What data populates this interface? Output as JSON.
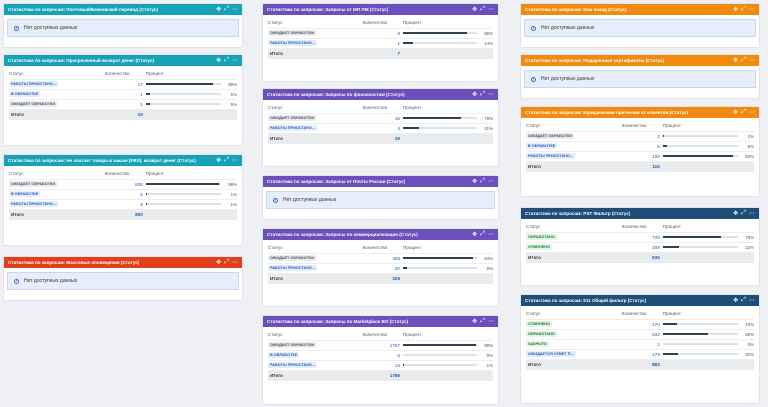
{
  "labels": {
    "status": "Статус",
    "count": "Количество",
    "percent": "Процент",
    "total": "Итого",
    "no_data": "Нет доступных данных",
    "info_icon": "i"
  },
  "icons": {
    "move": "move-icon",
    "expand": "expand-icon",
    "more": "more-icon"
  },
  "colors": {
    "teal": "#17a2b8",
    "purple": "#6b4fbb",
    "orange": "#f28a10",
    "red": "#e2401c",
    "navy": "#1f4e79",
    "bar": "#2f4050"
  },
  "cards": {
    "c1": {
      "title": "Статистика по запросам: Почтовый/Банковский перевод (Статус)"
    },
    "c2": {
      "title": "Статистика по запросам: Просроченный возврат денег (Статус)",
      "rows": [
        {
          "status": "РАБОТЫ ПРИОСТАНО...",
          "count": "17",
          "pct": 89,
          "pct_label": "89%"
        },
        {
          "status": "В ОБРАБОТКЕ",
          "count": "1",
          "pct": 5,
          "pct_label": "5%"
        },
        {
          "status": "ОЖИДАЕТ ОБРАБОТКИ",
          "count": "1",
          "pct": 5,
          "pct_label": "5%"
        }
      ],
      "total": "19"
    },
    "c3": {
      "title": "Статистика по запросам: Не хватает товара в заказе (FBS), возврат денег (Статус)",
      "rows": [
        {
          "status": "ОЖИДАЕТ ОБРАБОТКИ",
          "count": "836",
          "pct": 98,
          "pct_label": "98%"
        },
        {
          "status": "В ОБРАБОТКЕ",
          "count": "5",
          "pct": 1,
          "pct_label": "1%"
        },
        {
          "status": "РАБОТЫ ПРИОСТАНО...",
          "count": "9",
          "pct": 1,
          "pct_label": "1%"
        }
      ],
      "total": "850"
    },
    "c4": {
      "title": "Статистика по запросам: Массовые оповещения (Статус)"
    },
    "c5": {
      "title": "Статистика по запросам: Запросы от МП ПМ (Статус)",
      "rows": [
        {
          "status": "ОЖИДАЕТ ОБРАБОТКИ",
          "count": "6",
          "pct": 86,
          "pct_label": "86%"
        },
        {
          "status": "РАБОТЫ ПРИОСТАНО...",
          "count": "1",
          "pct": 14,
          "pct_label": "14%"
        }
      ],
      "total": "7"
    },
    "c6": {
      "title": "Статистика по запросам: Запросы по финансистам (Статус)",
      "rows": [
        {
          "status": "ОЖИДАЕТ ОБРАБОТКИ",
          "count": "15",
          "pct": 79,
          "pct_label": "79%"
        },
        {
          "status": "РАБОТЫ ПРИОСТАНО...",
          "count": "4",
          "pct": 21,
          "pct_label": "21%"
        }
      ],
      "total": "19"
    },
    "c7": {
      "title": "Статистика по запросам: Запросы от Почты России (Статус)"
    },
    "c8": {
      "title": "Статистика по запросам: Запросы по коммерциализации (Статус)",
      "rows": [
        {
          "status": "ОЖИДАЕТ ОБРАБОТКИ",
          "count": "305",
          "pct": 94,
          "pct_label": "94%"
        },
        {
          "status": "РАБОТЫ ПРИОСТАНО...",
          "count": "20",
          "pct": 6,
          "pct_label": "6%"
        }
      ],
      "total": "325"
    },
    "c9": {
      "title": "Статистика по запросам: Запросы по Marketplace BO (Статус)",
      "rows": [
        {
          "status": "ОЖИДАЕТ ОБРАБОТКИ",
          "count": "1767",
          "pct": 99,
          "pct_label": "99%"
        },
        {
          "status": "В ОБРАБОТКЕ",
          "count": "5",
          "pct": 0,
          "pct_label": "0%"
        },
        {
          "status": "РАБОТЫ ПРИОСТАНО...",
          "count": "14",
          "pct": 1,
          "pct_label": "1%"
        }
      ],
      "total": "1786"
    },
    "c10": {
      "title": "Статистика по запросам: Кеш назад (Статус)"
    },
    "c11": {
      "title": "Статистика по запросам: Подарочные сертификаты (Статус)"
    },
    "c12": {
      "title": "Статистика по запросам: Юридические претензии от клиентов (Статус)",
      "rows": [
        {
          "status": "ОЖИДАЕТ ОБРАБОТКИ",
          "count": "2",
          "pct": 2,
          "pct_label": "2%"
        },
        {
          "status": "В ОБРАБОТКЕ",
          "count": "6",
          "pct": 5,
          "pct_label": "5%"
        },
        {
          "status": "РАБОТЫ ПРИОСТАНО...",
          "count": "108",
          "pct": 93,
          "pct_label": "93%"
        }
      ],
      "total": "116"
    },
    "c13": {
      "title": "Статистика по запросам: PST Фильтр (Статус)",
      "rows": [
        {
          "status": "ОБРАБОТАНО",
          "count": "728",
          "pct": 78,
          "pct_label": "78%"
        },
        {
          "status": "ОТМЕНЕНО",
          "count": "208",
          "pct": 22,
          "pct_label": "22%"
        }
      ],
      "total": "936"
    },
    "c14": {
      "title": "Статистика по запросам: 911 Общий фильтр (Статус)",
      "rows": [
        {
          "status": "ОТМЕНЕНО",
          "count": "170",
          "pct": 19,
          "pct_label": "19%"
        },
        {
          "status": "ОБРАБОТАНО",
          "count": "532",
          "pct": 60,
          "pct_label": "60%"
        },
        {
          "status": "ЗАКРЫТО",
          "count": "2",
          "pct": 0,
          "pct_label": "0%"
        },
        {
          "status": "ОЖИДАЕТСЯ ОТВЕТ П...",
          "count": "179",
          "pct": 20,
          "pct_label": "20%"
        }
      ],
      "total": "883"
    }
  }
}
